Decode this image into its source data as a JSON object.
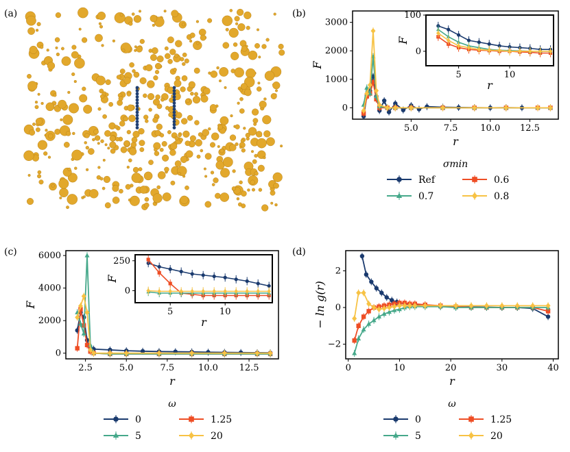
{
  "colors": {
    "ref": "#1a3a6e",
    "s06": "#ee4d24",
    "s07": "#45a88a",
    "s08": "#f7c244",
    "particle": "#e2a82c",
    "blue_particle": "#1f3f73"
  },
  "panels": {
    "a": {
      "label": "(a)",
      "description_icon": "particle-snapshot"
    },
    "b": {
      "label": "(b)"
    },
    "c": {
      "label": "(c)"
    },
    "d": {
      "label": "(d)"
    }
  },
  "chart_data": [
    {
      "id": "b",
      "type": "line",
      "xlabel": "r",
      "ylabel": "F",
      "xlim": [
        1.3,
        14.3
      ],
      "ylim": [
        -400,
        3400
      ],
      "xticks": [
        "5.0",
        "7.5",
        "10.0",
        "12.5"
      ],
      "xtick_values": [
        5.0,
        7.5,
        10.0,
        12.5
      ],
      "yticks": [
        "0",
        "1000",
        "2000",
        "3000"
      ],
      "ytick_values": [
        0,
        1000,
        2000,
        3000
      ],
      "legend_title": "σmin",
      "legend_entries": [
        "Ref",
        "0.6",
        "0.7",
        "0.8"
      ],
      "series": [
        {
          "name": "Ref",
          "x": [
            2.0,
            2.2,
            2.4,
            2.6,
            2.8,
            3.0,
            3.3,
            3.6,
            4.0,
            4.5,
            5.0,
            5.5,
            6.0,
            7.0,
            8.0,
            9.0,
            10.0,
            11.0,
            12.0,
            13.0,
            13.8
          ],
          "values": [
            -300,
            400,
            600,
            1100,
            400,
            -100,
            250,
            -150,
            150,
            -80,
            80,
            -50,
            40,
            20,
            10,
            5,
            0,
            5,
            0,
            0,
            0
          ]
        },
        {
          "name": "0.6",
          "x": [
            2.0,
            2.2,
            2.4,
            2.6,
            2.8,
            3.0,
            3.5,
            4.0,
            5.0,
            7.0,
            9.0,
            11.0,
            13.0,
            13.8
          ],
          "values": [
            -200,
            400,
            500,
            900,
            300,
            0,
            0,
            0,
            0,
            0,
            0,
            0,
            0,
            0
          ]
        },
        {
          "name": "0.7",
          "x": [
            2.0,
            2.2,
            2.4,
            2.6,
            2.8,
            3.0,
            3.5,
            4.0,
            5.0,
            7.0,
            9.0,
            11.0,
            13.0,
            13.8
          ],
          "values": [
            100,
            700,
            500,
            1800,
            400,
            50,
            0,
            0,
            0,
            0,
            0,
            0,
            0,
            0
          ]
        },
        {
          "name": "0.8",
          "x": [
            2.0,
            2.2,
            2.4,
            2.6,
            2.8,
            3.0,
            3.5,
            4.0,
            5.0,
            7.0,
            9.0,
            11.0,
            13.0,
            13.8
          ],
          "values": [
            -100,
            500,
            800,
            2700,
            600,
            100,
            0,
            0,
            0,
            0,
            0,
            0,
            0,
            0
          ]
        }
      ],
      "inset": {
        "xlabel": "r",
        "ylabel": "F",
        "xlim": [
          1.8,
          14.3
        ],
        "ylim": [
          -40,
          100
        ],
        "xticks": [
          "5",
          "10"
        ],
        "xtick_values": [
          5,
          10
        ],
        "yticks": [
          "0",
          "100"
        ],
        "ytick_values": [
          0,
          100
        ],
        "series": [
          {
            "name": "Ref",
            "x": [
              3,
              4,
              5,
              6,
              7,
              8,
              9,
              10,
              11,
              12,
              13,
              14
            ],
            "values": [
              70,
              60,
              45,
              30,
              25,
              20,
              15,
              12,
              10,
              8,
              5,
              5
            ]
          },
          {
            "name": "0.6",
            "x": [
              3,
              4,
              5,
              6,
              7,
              8,
              9,
              10,
              11,
              12,
              13,
              14
            ],
            "values": [
              40,
              20,
              10,
              5,
              3,
              2,
              0,
              0,
              -2,
              -3,
              -5,
              -5
            ]
          },
          {
            "name": "0.7",
            "x": [
              3,
              4,
              5,
              6,
              7,
              8,
              9,
              10,
              11,
              12,
              13,
              14
            ],
            "values": [
              60,
              40,
              25,
              15,
              10,
              5,
              3,
              2,
              1,
              0,
              0,
              0
            ]
          },
          {
            "name": "0.8",
            "x": [
              3,
              4,
              5,
              6,
              7,
              8,
              9,
              10,
              11,
              12,
              13,
              14
            ],
            "values": [
              50,
              30,
              15,
              10,
              5,
              3,
              2,
              0,
              0,
              0,
              0,
              0
            ]
          }
        ]
      }
    },
    {
      "id": "c",
      "type": "line",
      "xlabel": "r",
      "ylabel": "F",
      "xlim": [
        1.3,
        14.3
      ],
      "ylim": [
        -350,
        6300
      ],
      "xticks": [
        "2.5",
        "5.0",
        "7.5",
        "10.0",
        "12.5"
      ],
      "xtick_values": [
        2.5,
        5.0,
        7.5,
        10.0,
        12.5
      ],
      "yticks": [
        "0",
        "2000",
        "4000",
        "6000"
      ],
      "ytick_values": [
        0,
        2000,
        4000,
        6000
      ],
      "legend_title": "ω",
      "legend_entries": [
        "0",
        "1.25",
        "5",
        "20"
      ],
      "series": [
        {
          "name": "0",
          "x": [
            2.0,
            2.2,
            2.4,
            2.6,
            2.8,
            3.0,
            4,
            5,
            6,
            7,
            8,
            9,
            10,
            11,
            12,
            13,
            13.8
          ],
          "values": [
            1400,
            2500,
            2200,
            800,
            300,
            250,
            200,
            150,
            120,
            100,
            90,
            80,
            60,
            50,
            40,
            30,
            20
          ]
        },
        {
          "name": "1.25",
          "x": [
            2.0,
            2.2,
            2.4,
            2.6,
            2.8,
            3.0,
            4,
            5,
            7,
            9,
            11,
            13,
            13.8
          ],
          "values": [
            300,
            2700,
            1700,
            500,
            100,
            0,
            -50,
            -50,
            -50,
            -50,
            -50,
            -50,
            -50
          ]
        },
        {
          "name": "5",
          "x": [
            2.0,
            2.2,
            2.4,
            2.6,
            2.8,
            3.0,
            4,
            5,
            7,
            9,
            11,
            13,
            13.8
          ],
          "values": [
            2500,
            1800,
            1200,
            6000,
            500,
            0,
            -50,
            -50,
            -50,
            -50,
            -50,
            -50,
            -50
          ]
        },
        {
          "name": "20",
          "x": [
            2.0,
            2.2,
            2.4,
            2.6,
            2.8,
            3.0,
            4,
            5,
            7,
            9,
            11,
            13,
            13.8
          ],
          "values": [
            2200,
            2900,
            3500,
            2500,
            200,
            0,
            0,
            0,
            0,
            0,
            0,
            0,
            0
          ]
        }
      ],
      "inset": {
        "xlabel": "r",
        "ylabel": "F",
        "xlim": [
          1.8,
          14.3
        ],
        "ylim": [
          -100,
          300
        ],
        "xticks": [
          "5",
          "10"
        ],
        "xtick_values": [
          5,
          10
        ],
        "yticks": [
          "0",
          "250"
        ],
        "ytick_values": [
          0,
          250
        ],
        "series": [
          {
            "name": "0",
            "x": [
              3,
              4,
              5,
              6,
              7,
              8,
              9,
              10,
              11,
              12,
              13,
              14
            ],
            "values": [
              230,
              200,
              180,
              160,
              140,
              130,
              120,
              110,
              95,
              80,
              60,
              40
            ]
          },
          {
            "name": "1.25",
            "x": [
              3,
              4,
              5,
              6,
              7,
              8,
              9,
              10,
              11,
              12,
              13,
              14
            ],
            "values": [
              260,
              150,
              60,
              -20,
              -30,
              -40,
              -40,
              -40,
              -40,
              -40,
              -40,
              -40
            ]
          },
          {
            "name": "5",
            "x": [
              3,
              4,
              5,
              6,
              7,
              8,
              9,
              10,
              11,
              12,
              13,
              14
            ],
            "values": [
              -10,
              -20,
              -20,
              -20,
              -20,
              -20,
              -20,
              -20,
              -20,
              -20,
              -20,
              -20
            ]
          },
          {
            "name": "20",
            "x": [
              3,
              4,
              5,
              6,
              7,
              8,
              9,
              10,
              11,
              12,
              13,
              14
            ],
            "values": [
              0,
              -5,
              -5,
              -5,
              -5,
              -5,
              -5,
              -5,
              -5,
              -5,
              -5,
              -5
            ]
          }
        ]
      }
    },
    {
      "id": "d",
      "type": "line",
      "xlabel": "r",
      "ylabel": "− ln g(r)",
      "xlim": [
        -0.5,
        41
      ],
      "ylim": [
        -2.8,
        3.1
      ],
      "xticks": [
        "0",
        "10",
        "20",
        "30",
        "40"
      ],
      "xtick_values": [
        0,
        10,
        20,
        30,
        40
      ],
      "yticks": [
        "−2",
        "0",
        "2"
      ],
      "ytick_values": [
        -2,
        0,
        2
      ],
      "legend_title": "ω",
      "legend_entries": [
        "0",
        "1.25",
        "5",
        "20"
      ],
      "series": [
        {
          "name": "0",
          "x": [
            2.7,
            3.5,
            4.5,
            5.5,
            6.5,
            7.5,
            8.5,
            9.5,
            11,
            13,
            15,
            18,
            21,
            24,
            27,
            30,
            33,
            36,
            39
          ],
          "values": [
            2.8,
            1.8,
            1.4,
            1.05,
            0.8,
            0.55,
            0.4,
            0.3,
            0.2,
            0.15,
            0.1,
            0.05,
            0.05,
            0.03,
            0.02,
            0.0,
            0.0,
            -0.05,
            -0.5
          ]
        },
        {
          "name": "1.25",
          "x": [
            1.2,
            2.0,
            3.0,
            4.0,
            5.0,
            6.0,
            7,
            8,
            9,
            10,
            11,
            12,
            13,
            15,
            18,
            21,
            24,
            27,
            30,
            33,
            36,
            39
          ],
          "values": [
            -1.8,
            -1.0,
            -0.5,
            -0.2,
            0.0,
            0.05,
            0.1,
            0.15,
            0.2,
            0.25,
            0.25,
            0.2,
            0.2,
            0.15,
            0.1,
            0.05,
            0.0,
            0.0,
            0.0,
            0.0,
            0.0,
            -0.2
          ]
        },
        {
          "name": "5",
          "x": [
            1.2,
            2.0,
            3.0,
            4.0,
            5.0,
            6.0,
            7,
            8,
            9,
            10,
            11,
            12,
            13,
            15,
            18,
            21,
            24,
            27,
            30,
            33,
            36,
            39
          ],
          "values": [
            -2.5,
            -1.7,
            -1.2,
            -0.9,
            -0.7,
            -0.5,
            -0.35,
            -0.25,
            -0.15,
            -0.1,
            0.0,
            0.05,
            0.05,
            0.05,
            0.05,
            0.0,
            0.0,
            0.0,
            0.0,
            0.0,
            0.0,
            0.0
          ]
        },
        {
          "name": "20",
          "x": [
            1.2,
            2.0,
            3.0,
            4.0,
            5.0,
            6.0,
            7,
            8,
            9,
            10,
            11,
            12,
            13,
            15,
            18,
            21,
            24,
            27,
            30,
            33,
            36,
            39
          ],
          "values": [
            -0.6,
            0.8,
            0.8,
            0.2,
            0.0,
            -0.1,
            -0.05,
            0.0,
            0.05,
            0.1,
            0.1,
            0.1,
            0.1,
            0.1,
            0.1,
            0.1,
            0.1,
            0.1,
            0.1,
            0.1,
            0.1,
            0.1
          ]
        }
      ]
    }
  ]
}
